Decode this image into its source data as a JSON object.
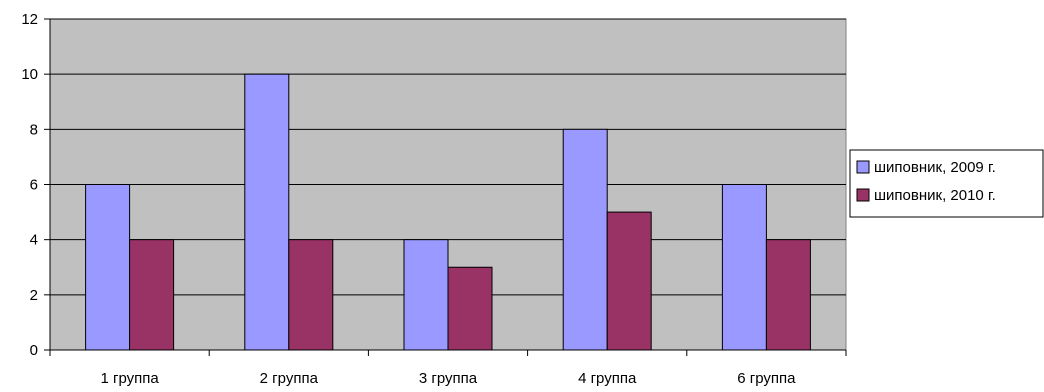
{
  "chart_data": {
    "type": "bar",
    "title": "",
    "xlabel": "",
    "ylabel": "",
    "categories": [
      "1 группа",
      "2 группа",
      "3 группа",
      "4 группа",
      "6 группа"
    ],
    "series": [
      {
        "name": "шиповник, 2009 г.",
        "values": [
          6,
          10,
          4,
          8,
          6
        ],
        "color": "#9999ff"
      },
      {
        "name": "шиповник, 2010 г.",
        "values": [
          4,
          4,
          3,
          5,
          4
        ],
        "color": "#993366"
      }
    ],
    "ylim": [
      0,
      12
    ],
    "yticks": [
      "0",
      "2",
      "4",
      "6",
      "8",
      "10",
      "12"
    ],
    "grid": true,
    "plot_background": "#c0c0c0",
    "legend_position": "right"
  }
}
